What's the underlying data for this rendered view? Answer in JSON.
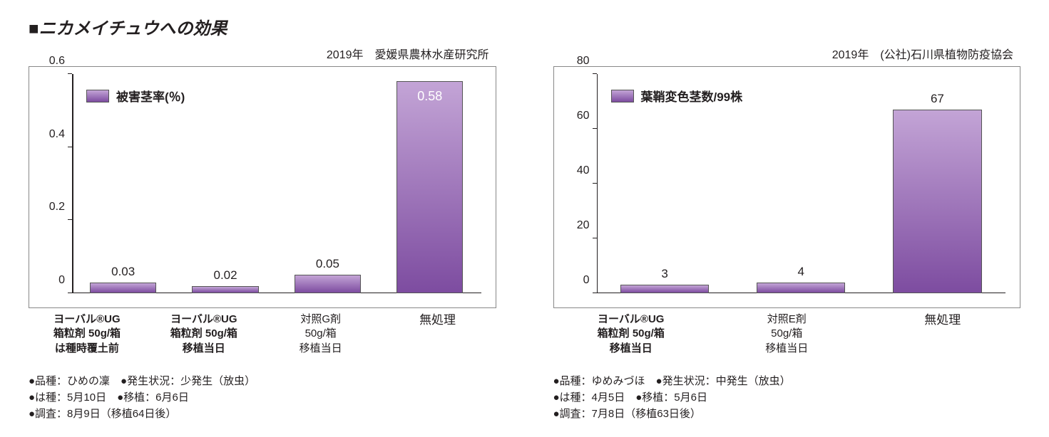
{
  "title": "■ニカメイチュウへの効果",
  "left": {
    "subtitle": "2019年　愛媛県農林水産研究所",
    "legend_label": "被害茎率(％)",
    "type": "bar",
    "ylim": [
      0,
      0.6
    ],
    "ytick_step": 0.2,
    "yticks": [
      "0",
      "0.2",
      "0.4",
      "0.6"
    ],
    "bar_color_top": "#c3a4d6",
    "bar_color_bottom": "#7d4ca0",
    "border_color": "#555555",
    "background_color": "#ffffff",
    "categories": [
      {
        "lines": [
          "ヨーバル®UG",
          "箱粒剤 50g/箱",
          "は種時覆土前"
        ],
        "bold": true
      },
      {
        "lines": [
          "ヨーバル®UG",
          "箱粒剤 50g/箱",
          "移植当日"
        ],
        "bold": true
      },
      {
        "lines": [
          "対照G剤",
          "50g/箱",
          "移植当日"
        ],
        "bold": false
      },
      {
        "lines": [
          "無処理"
        ],
        "bold": false,
        "big": true
      }
    ],
    "values": [
      0.03,
      0.02,
      0.05,
      0.58
    ],
    "value_labels": [
      "0.03",
      "0.02",
      "0.05",
      "0.58"
    ],
    "value_label_inside": [
      false,
      false,
      false,
      true
    ],
    "notes": [
      "●品種：ひめの凜　●発生状況：少発生（放虫）",
      "●は種：5月10日　●移植：6月6日",
      "●調査：8月9日（移植64日後）"
    ]
  },
  "right": {
    "subtitle": "2019年　(公社)石川県植物防疫協会",
    "legend_label": "葉鞘変色茎数/99株",
    "type": "bar",
    "ylim": [
      0,
      80
    ],
    "ytick_step": 20,
    "yticks": [
      "0",
      "20",
      "40",
      "60",
      "80"
    ],
    "bar_color_top": "#c3a4d6",
    "bar_color_bottom": "#7d4ca0",
    "border_color": "#555555",
    "background_color": "#ffffff",
    "categories": [
      {
        "lines": [
          "ヨーバル®UG",
          "箱粒剤 50g/箱",
          "移植当日"
        ],
        "bold": true
      },
      {
        "lines": [
          "対照E剤",
          "50g/箱",
          "移植当日"
        ],
        "bold": false
      },
      {
        "lines": [
          "無処理"
        ],
        "bold": false,
        "big": true
      }
    ],
    "values": [
      3,
      4,
      67
    ],
    "value_labels": [
      "3",
      "4",
      "67"
    ],
    "value_label_inside": [
      false,
      false,
      false
    ],
    "notes": [
      "●品種：ゆめみづほ　●発生状況：中発生（放虫）",
      "●は種：4月5日　●移植：5月6日",
      "●調査：7月8日（移植63日後）"
    ]
  }
}
